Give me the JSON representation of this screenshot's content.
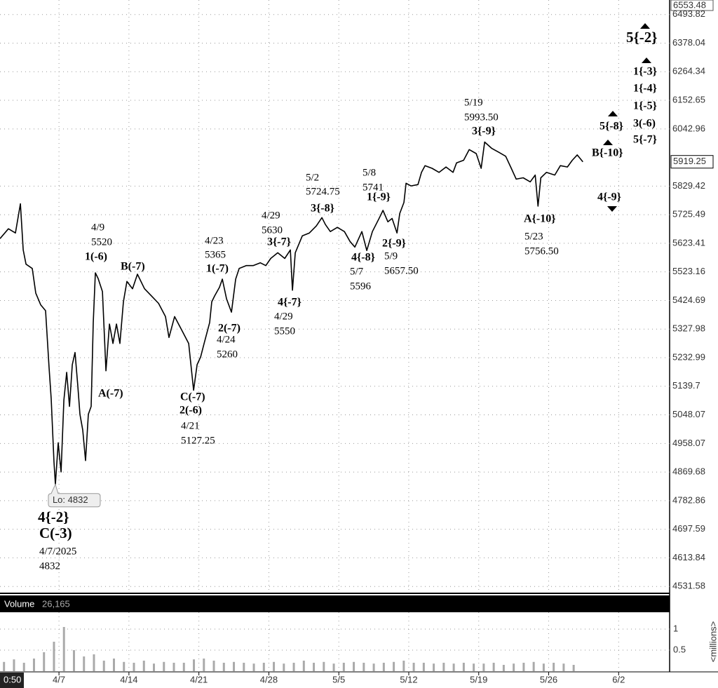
{
  "chart_data": [
    {
      "type": "line",
      "log_scale": true,
      "grid": true,
      "color": "#000000",
      "xlim": [
        1.1,
        68.1
      ],
      "xticks": [
        {
          "value": 7,
          "label": "4/7"
        },
        {
          "value": 14,
          "label": "4/14"
        },
        {
          "value": 21,
          "label": "4/21"
        },
        {
          "value": 28,
          "label": "4/28"
        },
        {
          "value": 35,
          "label": "5/5"
        },
        {
          "value": 42,
          "label": "5/12"
        },
        {
          "value": 49,
          "label": "5/19"
        },
        {
          "value": 56,
          "label": "5/26"
        },
        {
          "value": 63,
          "label": "6/2"
        }
      ],
      "ylim": [
        4514,
        6553.48
      ],
      "yticks": [
        6493.82,
        6378.04,
        6264.34,
        6152.65,
        6042.96,
        5829.42,
        5725.49,
        5623.41,
        5523.16,
        5424.69,
        5327.98,
        5232.99,
        5139.7,
        5048.07,
        4958.07,
        4869.68,
        4782.86,
        4697.59,
        4613.84,
        4531.58
      ],
      "last_price": 5919.25,
      "low_callout": "Lo: 4832",
      "x": [
        1.1,
        1.94,
        2.64,
        3.14,
        3.42,
        3.7,
        4.33,
        4.68,
        5.17,
        5.66,
        6.01,
        6.22,
        6.5,
        6.64,
        6.92,
        7.21,
        7.49,
        7.77,
        8.05,
        8.33,
        8.61,
        8.89,
        9.1,
        9.38,
        9.66,
        9.94,
        10.22,
        10.43,
        10.64,
        10.92,
        11.35,
        11.7,
        12.05,
        12.4,
        12.75,
        13.1,
        13.45,
        13.8,
        14.36,
        14.85,
        15.56,
        16.26,
        16.96,
        17.66,
        18.01,
        18.57,
        19.28,
        19.98,
        20.47,
        20.82,
        21.17,
        21.52,
        22.08,
        22.29,
        22.57,
        23.06,
        23.35,
        23.77,
        24.26,
        24.68,
        25.03,
        25.73,
        26.43,
        27.14,
        27.7,
        28.19,
        28.89,
        29.59,
        30.15,
        30.36,
        30.64,
        31.35,
        32.05,
        32.75,
        33.31,
        33.66,
        34.15,
        34.85,
        35.56,
        36.12,
        36.61,
        37.31,
        37.8,
        38.36,
        39.07,
        39.42,
        39.91,
        40.33,
        40.82,
        41.1,
        41.52,
        41.73,
        42.22,
        42.92,
        43.27,
        43.63,
        44.33,
        45.03,
        45.73,
        46.43,
        46.78,
        47.49,
        48.05,
        48.75,
        49.24,
        49.59,
        50.29,
        51.0,
        51.7,
        52.26,
        52.75,
        53.45,
        54.15,
        54.65,
        54.93,
        55.21,
        55.77,
        56.61,
        57.17,
        57.87,
        58.36,
        58.85,
        59.42
      ],
      "values": [
        5640,
        5675,
        5660,
        5765,
        5600,
        5550,
        5535,
        5450,
        5410,
        5390,
        5200,
        5100,
        4900,
        4832,
        4960,
        4870,
        5095,
        5185,
        5075,
        5210,
        5250,
        5140,
        5050,
        5000,
        4905,
        5050,
        5075,
        5350,
        5520,
        5500,
        5455,
        5190,
        5345,
        5280,
        5345,
        5280,
        5420,
        5490,
        5465,
        5515,
        5465,
        5440,
        5415,
        5370,
        5300,
        5370,
        5325,
        5280,
        5127,
        5210,
        5235,
        5280,
        5350,
        5420,
        5440,
        5470,
        5498,
        5430,
        5385,
        5498,
        5535,
        5545,
        5545,
        5555,
        5545,
        5570,
        5590,
        5570,
        5600,
        5460,
        5590,
        5650,
        5660,
        5685,
        5715,
        5690,
        5665,
        5680,
        5665,
        5630,
        5610,
        5665,
        5598,
        5665,
        5715,
        5741,
        5700,
        5712,
        5660,
        5730,
        5770,
        5840,
        5830,
        5835,
        5880,
        5905,
        5895,
        5880,
        5900,
        5880,
        5915,
        5925,
        5965,
        5950,
        5895,
        5993.5,
        5970,
        5955,
        5940,
        5895,
        5855,
        5860,
        5845,
        5870,
        5756.5,
        5860,
        5880,
        5870,
        5905,
        5900,
        5925,
        5945,
        5919.25
      ],
      "annotations": [
        "4/9",
        "5520",
        "1(-6)",
        "B(-7)",
        "A(-7)",
        "4{-2}",
        "C(-3)",
        "4/7/2025",
        "4832",
        "C(-7)",
        "2(-6)",
        "4/21",
        "5127.25",
        "4/23",
        "5365",
        "1(-7)",
        "2(-7)",
        "4/24",
        "5260",
        "4/29",
        "5630",
        "3{-7}",
        "4{-7}",
        "4/29",
        "5550",
        "5/2",
        "5724.75",
        "3{-8}",
        "5/8",
        "5741",
        "1{-9}",
        "2{-9}",
        "5/9",
        "5657.50",
        "4{-8}",
        "5/7",
        "5596",
        "5/19",
        "5993.50",
        "3{-9}",
        "A{-10}",
        "5/23",
        "5756.50",
        "B{-10}",
        "4{-9}",
        "5{-8}",
        "5{-2}",
        "1{-3}",
        "1{-4}",
        "1{-5}",
        "3(-6)",
        "5{-7}"
      ]
    },
    {
      "type": "bar",
      "title": "Volume",
      "subtitle": "26,165",
      "y_label": "<millions>",
      "color": "#aaaaaa",
      "xlim": [
        1.1,
        68.1
      ],
      "ylim": [
        0,
        1.4
      ],
      "yticks": [
        0.5,
        1
      ],
      "x": [
        1.5,
        2.5,
        3.5,
        4.5,
        5.5,
        6.5,
        7.5,
        8.5,
        9.5,
        10.5,
        11.5,
        12.5,
        13.5,
        14.5,
        15.5,
        16.5,
        17.5,
        18.5,
        19.5,
        20.5,
        21.5,
        22.5,
        23.5,
        24.5,
        25.5,
        26.5,
        27.5,
        28.5,
        29.5,
        30.5,
        31.5,
        32.5,
        33.5,
        34.5,
        35.5,
        36.5,
        37.5,
        38.5,
        39.5,
        40.5,
        41.5,
        42.5,
        43.5,
        44.5,
        45.5,
        46.5,
        47.5,
        48.5,
        49.5,
        50.5,
        51.5,
        52.5,
        53.5,
        54.5,
        55.5,
        56.5,
        57.5,
        58.5
      ],
      "values": [
        0.22,
        0.28,
        0.2,
        0.3,
        0.45,
        0.7,
        1.05,
        0.5,
        0.35,
        0.4,
        0.25,
        0.3,
        0.22,
        0.2,
        0.25,
        0.18,
        0.22,
        0.2,
        0.2,
        0.28,
        0.3,
        0.25,
        0.2,
        0.22,
        0.2,
        0.18,
        0.2,
        0.22,
        0.18,
        0.2,
        0.25,
        0.2,
        0.22,
        0.18,
        0.2,
        0.22,
        0.2,
        0.18,
        0.2,
        0.22,
        0.25,
        0.2,
        0.2,
        0.18,
        0.2,
        0.18,
        0.2,
        0.18,
        0.18,
        0.2,
        0.15,
        0.18,
        0.2,
        0.22,
        0.18,
        0.2,
        0.18,
        0.15
      ]
    }
  ],
  "time_box": "0:50"
}
